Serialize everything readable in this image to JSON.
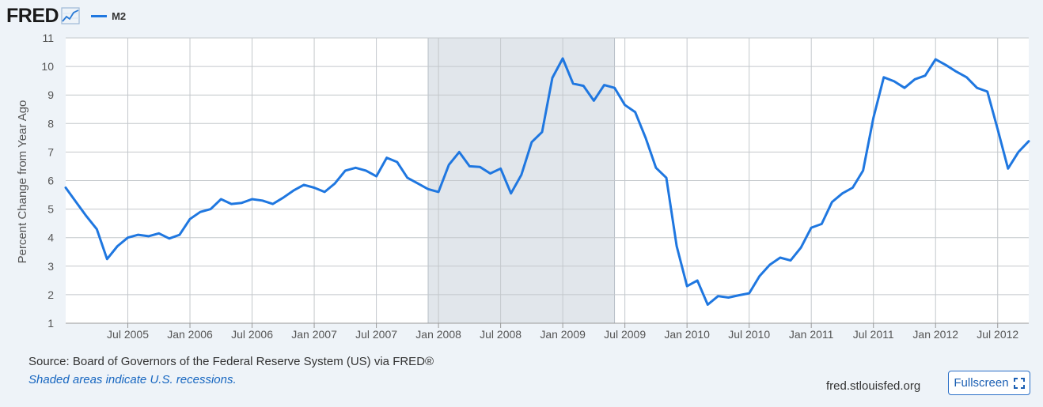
{
  "header": {
    "logo_text": "FRED"
  },
  "chart_data": {
    "type": "line",
    "title": "",
    "xlabel": "",
    "ylabel": "Percent Change from Year Ago",
    "ylim": [
      1,
      11
    ],
    "yticks": [
      1,
      2,
      3,
      4,
      5,
      6,
      7,
      8,
      9,
      10,
      11
    ],
    "xlim": [
      "2005-01-01",
      "2012-10-01"
    ],
    "xticks": [
      {
        "label": "Jul 2005",
        "date": "2005-07-01"
      },
      {
        "label": "Jan 2006",
        "date": "2006-01-01"
      },
      {
        "label": "Jul 2006",
        "date": "2006-07-01"
      },
      {
        "label": "Jan 2007",
        "date": "2007-01-01"
      },
      {
        "label": "Jul 2007",
        "date": "2007-07-01"
      },
      {
        "label": "Jan 2008",
        "date": "2008-01-01"
      },
      {
        "label": "Jul 2008",
        "date": "2008-07-01"
      },
      {
        "label": "Jan 2009",
        "date": "2009-01-01"
      },
      {
        "label": "Jul 2009",
        "date": "2009-07-01"
      },
      {
        "label": "Jan 2010",
        "date": "2010-01-01"
      },
      {
        "label": "Jul 2010",
        "date": "2010-07-01"
      },
      {
        "label": "Jan 2011",
        "date": "2011-01-01"
      },
      {
        "label": "Jul 2011",
        "date": "2011-07-01"
      },
      {
        "label": "Jan 2012",
        "date": "2012-01-01"
      },
      {
        "label": "Jul 2012",
        "date": "2012-07-01"
      }
    ],
    "recessions": [
      {
        "start": "2007-12-01",
        "end": "2009-06-01"
      }
    ],
    "grid": true,
    "line_color": "#1f77e0",
    "series": [
      {
        "name": "M2",
        "x": [
          "2005-01",
          "2005-02",
          "2005-03",
          "2005-04",
          "2005-05",
          "2005-06",
          "2005-07",
          "2005-08",
          "2005-09",
          "2005-10",
          "2005-11",
          "2005-12",
          "2006-01",
          "2006-02",
          "2006-03",
          "2006-04",
          "2006-05",
          "2006-06",
          "2006-07",
          "2006-08",
          "2006-09",
          "2006-10",
          "2006-11",
          "2006-12",
          "2007-01",
          "2007-02",
          "2007-03",
          "2007-04",
          "2007-05",
          "2007-06",
          "2007-07",
          "2007-08",
          "2007-09",
          "2007-10",
          "2007-11",
          "2007-12",
          "2008-01",
          "2008-02",
          "2008-03",
          "2008-04",
          "2008-05",
          "2008-06",
          "2008-07",
          "2008-08",
          "2008-09",
          "2008-10",
          "2008-11",
          "2008-12",
          "2009-01",
          "2009-02",
          "2009-03",
          "2009-04",
          "2009-05",
          "2009-06",
          "2009-07",
          "2009-08",
          "2009-09",
          "2009-10",
          "2009-11",
          "2009-12",
          "2010-01",
          "2010-02",
          "2010-03",
          "2010-04",
          "2010-05",
          "2010-06",
          "2010-07",
          "2010-08",
          "2010-09",
          "2010-10",
          "2010-11",
          "2010-12",
          "2011-01",
          "2011-02",
          "2011-03",
          "2011-04",
          "2011-05",
          "2011-06",
          "2011-07",
          "2011-08",
          "2011-09",
          "2011-10",
          "2011-11",
          "2011-12",
          "2012-01",
          "2012-02",
          "2012-03",
          "2012-04",
          "2012-05",
          "2012-06",
          "2012-07",
          "2012-08",
          "2012-09",
          "2012-10"
        ],
        "values": [
          5.75,
          5.25,
          4.75,
          4.3,
          3.25,
          3.7,
          4.0,
          4.1,
          4.05,
          4.15,
          3.97,
          4.1,
          4.65,
          4.9,
          5.0,
          5.35,
          5.18,
          5.22,
          5.35,
          5.3,
          5.18,
          5.4,
          5.65,
          5.85,
          5.75,
          5.6,
          5.9,
          6.35,
          6.45,
          6.35,
          6.15,
          6.8,
          6.65,
          6.1,
          5.9,
          5.7,
          5.6,
          6.55,
          7.0,
          6.5,
          6.48,
          6.25,
          6.42,
          5.55,
          6.2,
          7.35,
          7.7,
          9.6,
          10.28,
          9.4,
          9.32,
          8.8,
          9.35,
          9.25,
          8.65,
          8.4,
          7.5,
          6.45,
          6.1,
          3.7,
          2.3,
          2.5,
          1.65,
          1.95,
          1.9,
          1.98,
          2.05,
          2.65,
          3.05,
          3.3,
          3.2,
          3.65,
          4.35,
          4.48,
          5.25,
          5.55,
          5.75,
          6.35,
          8.2,
          9.62,
          9.48,
          9.25,
          9.55,
          9.68,
          10.25,
          10.05,
          9.82,
          9.62,
          9.25,
          9.12,
          7.8,
          6.42,
          7.0,
          7.38
        ]
      }
    ]
  },
  "footer": {
    "source": "Source: Board of Governors of the Federal Reserve System (US) via FRED®",
    "note": "Shaded areas indicate U.S. recessions.",
    "url": "fred.stlouisfed.org",
    "fullscreen_label": "Fullscreen"
  }
}
